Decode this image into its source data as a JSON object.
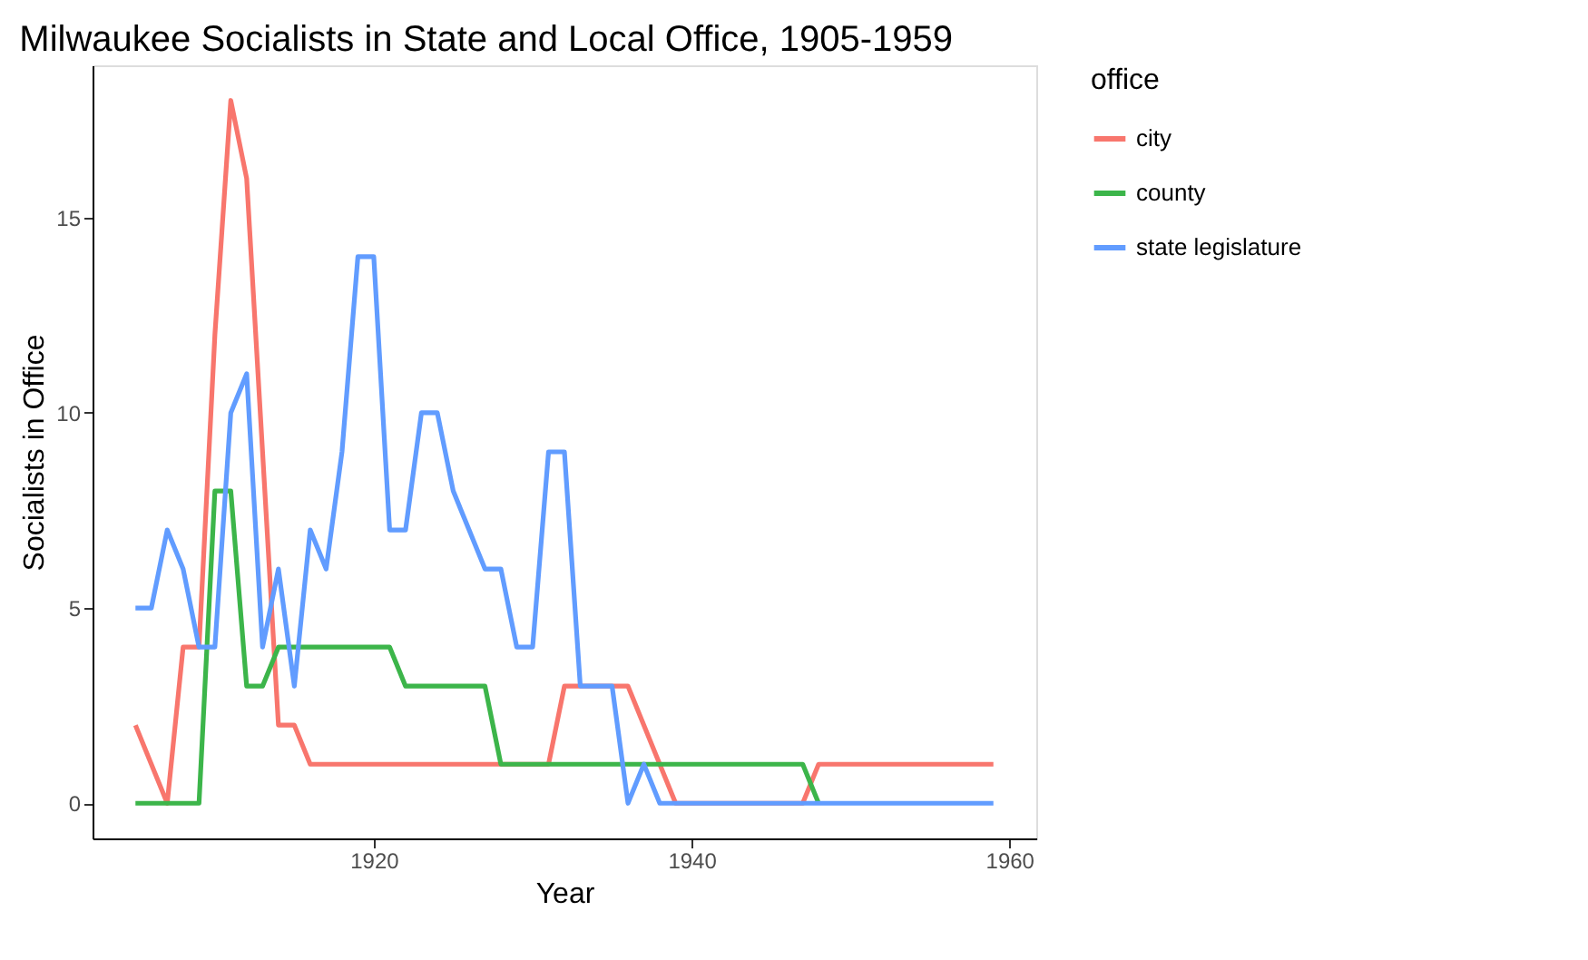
{
  "chart_data": {
    "type": "line",
    "title": "Milwaukee Socialists in State and Local Office, 1905-1959",
    "xlabel": "Year",
    "ylabel": "Socialists in Office",
    "legend_title": "office",
    "x": [
      1905,
      1906,
      1907,
      1908,
      1909,
      1910,
      1911,
      1912,
      1913,
      1914,
      1915,
      1916,
      1917,
      1918,
      1919,
      1920,
      1921,
      1922,
      1923,
      1924,
      1925,
      1926,
      1927,
      1928,
      1929,
      1930,
      1931,
      1932,
      1933,
      1934,
      1935,
      1936,
      1937,
      1938,
      1939,
      1940,
      1941,
      1942,
      1943,
      1944,
      1945,
      1946,
      1947,
      1948,
      1949,
      1950,
      1951,
      1952,
      1953,
      1954,
      1955,
      1956,
      1957,
      1958,
      1959
    ],
    "series": [
      {
        "name": "city",
        "color": "#f8766d",
        "values": [
          2,
          1,
          0,
          4,
          4,
          12,
          18,
          16,
          9,
          2,
          2,
          1,
          1,
          1,
          1,
          1,
          1,
          1,
          1,
          1,
          1,
          1,
          1,
          1,
          1,
          1,
          1,
          3,
          3,
          3,
          3,
          3,
          2,
          1,
          0,
          0,
          0,
          0,
          0,
          0,
          0,
          0,
          0,
          1,
          1,
          1,
          1,
          1,
          1,
          1,
          1,
          1,
          1,
          1,
          1
        ]
      },
      {
        "name": "county",
        "color": "#3cb54a",
        "values": [
          0,
          0,
          0,
          0,
          0,
          8,
          8,
          3,
          3,
          4,
          4,
          4,
          4,
          4,
          4,
          4,
          4,
          3,
          3,
          3,
          3,
          3,
          3,
          1,
          1,
          1,
          1,
          1,
          1,
          1,
          1,
          1,
          1,
          1,
          1,
          1,
          1,
          1,
          1,
          1,
          1,
          1,
          1,
          0,
          null,
          null,
          null,
          null,
          null,
          null,
          null,
          null,
          null,
          null,
          null
        ]
      },
      {
        "name": "state legislature",
        "color": "#619cff",
        "values": [
          5,
          5,
          7,
          6,
          4,
          4,
          10,
          11,
          4,
          6,
          3,
          7,
          6,
          9,
          14,
          14,
          7,
          7,
          10,
          10,
          8,
          7,
          6,
          6,
          4,
          4,
          9,
          9,
          3,
          3,
          3,
          0,
          1,
          0,
          0,
          0,
          0,
          0,
          0,
          0,
          0,
          0,
          0,
          0,
          0,
          0,
          0,
          0,
          0,
          0,
          0,
          0,
          0,
          0,
          0
        ]
      }
    ],
    "xlim": [
      1902.3,
      1961.7
    ],
    "ylim": [
      -0.9,
      18.9
    ],
    "xticks": [
      1920,
      1940,
      1960
    ],
    "yticks": [
      0,
      5,
      10,
      15
    ],
    "grid": false,
    "legend": "right",
    "marker": "none",
    "line_style": "solid"
  }
}
